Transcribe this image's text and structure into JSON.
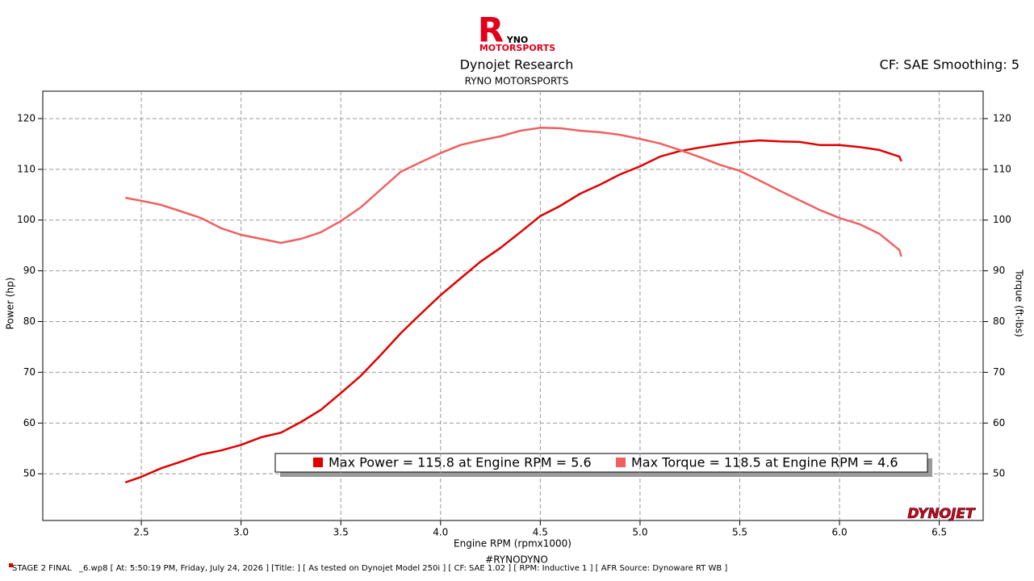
{
  "header": {
    "logo_letter": "R",
    "logo_name": "YNO",
    "logo_sub": "MOTORSPORTS",
    "title": "Dynojet Research",
    "subtitle": "RYNO MOTORSPORTS",
    "settings": "CF: SAE Smoothing: 5"
  },
  "chart_data": {
    "type": "line",
    "x_label": "Engine RPM (rpmx1000)",
    "y_label": "Power (hp)",
    "y2_label": "Torque (ft-lbs)",
    "x": [
      2.42,
      2.5,
      2.6,
      2.7,
      2.8,
      2.9,
      3.0,
      3.1,
      3.2,
      3.3,
      3.4,
      3.5,
      3.6,
      3.7,
      3.8,
      3.9,
      4.0,
      4.1,
      4.2,
      4.3,
      4.4,
      4.5,
      4.6,
      4.7,
      4.8,
      4.9,
      5.0,
      5.1,
      5.2,
      5.3,
      5.4,
      5.5,
      5.6,
      5.7,
      5.8,
      5.9,
      6.0,
      6.1,
      6.2,
      6.3,
      6.31
    ],
    "series": [
      {
        "color": "#e00000",
        "values": [
          48.3,
          49.4,
          51.1,
          52.4,
          53.8,
          54.6,
          55.7,
          57.2,
          58.1,
          60.2,
          62.6,
          65.9,
          69.3,
          73.4,
          77.7,
          81.5,
          85.2,
          88.5,
          91.8,
          94.5,
          97.6,
          100.8,
          102.8,
          105.2,
          107.0,
          109.0,
          110.6,
          112.5,
          113.6,
          114.3,
          114.9,
          115.4,
          115.7,
          115.5,
          115.4,
          114.8,
          114.8,
          114.4,
          113.8,
          112.5,
          111.6
        ]
      },
      {
        "color": "#f06060",
        "axis": "y2",
        "values": [
          104.4,
          103.8,
          103.0,
          101.7,
          100.4,
          98.4,
          97.1,
          96.3,
          95.5,
          96.3,
          97.6,
          99.8,
          102.5,
          106.0,
          109.5,
          111.4,
          113.2,
          114.8,
          115.7,
          116.5,
          117.6,
          118.2,
          118.1,
          117.6,
          117.3,
          116.8,
          116.0,
          115.1,
          113.8,
          112.4,
          110.9,
          109.7,
          107.8,
          105.8,
          103.9,
          102.0,
          100.4,
          99.2,
          97.3,
          94.1,
          92.8
        ]
      }
    ],
    "legend_entries": [
      "Max Power = 115.8 at Engine RPM = 5.6",
      "Max Torque = 118.5 at Engine RPM = 4.6"
    ],
    "xlim": [
      2.006,
      6.72
    ],
    "xticks": [
      2.5,
      {
        "value": 3,
        "label": "3.0"
      },
      3.5,
      {
        "value": 4,
        "label": "4.0"
      },
      4.5,
      {
        "value": 5,
        "label": "5.0"
      },
      5.5,
      {
        "value": 6,
        "label": "6.0"
      },
      6.5
    ],
    "ylim": [
      40.8,
      125.4
    ],
    "yticks": [
      50,
      60,
      70,
      80,
      90,
      100,
      110,
      120
    ],
    "y2lim": [
      40.8,
      125.4
    ],
    "y2ticks": [
      50,
      60,
      70,
      80,
      90,
      100,
      110,
      120
    ],
    "grid": true
  },
  "brand": "DYNOJET",
  "hashtag": "#RYNODYNO",
  "footer": {
    "run": "STAGE 2 FINAL",
    "details": "_6.wp8 [ At: 5:50:19 PM, Friday, July 24, 2026 ] [Title: ]  [ As tested on Dynojet Model 250i ] [ CF: SAE 1.02 ] [ RPM: Inductive 1 ] [ AFR Source: Dynoware RT WB ]"
  }
}
